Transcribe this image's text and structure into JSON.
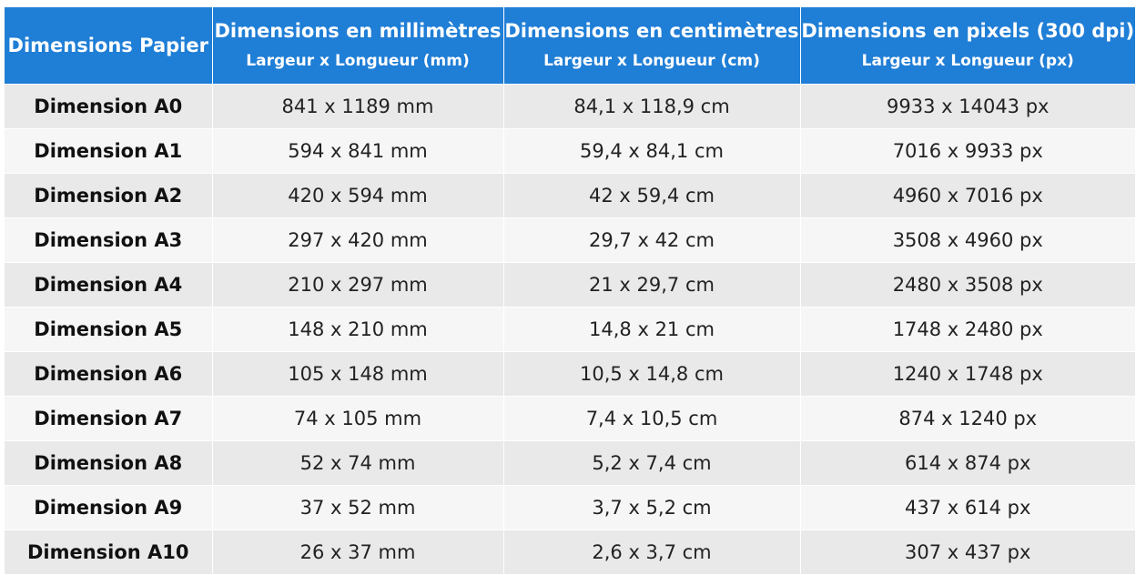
{
  "table": {
    "headers": [
      {
        "main": "Dimensions Papier",
        "sub": ""
      },
      {
        "main": "Dimensions en millimètres",
        "sub": "Largeur x Longueur (mm)"
      },
      {
        "main": "Dimensions en centimètres",
        "sub": "Largeur x Longueur (cm)"
      },
      {
        "main": "Dimensions en pixels (300 dpi)",
        "sub": "Largeur x Longueur (px)"
      }
    ],
    "rows": [
      [
        "Dimension A0",
        "841 x 1189 mm",
        "84,1 x 118,9 cm",
        "9933 x 14043 px"
      ],
      [
        "Dimension A1",
        "594 x 841 mm",
        "59,4 x 84,1 cm",
        "7016 x 9933 px"
      ],
      [
        "Dimension A2",
        "420 x 594 mm",
        "42 x 59,4 cm",
        "4960 x 7016 px"
      ],
      [
        "Dimension A3",
        "297 x 420 mm",
        "29,7 x 42 cm",
        "3508 x 4960 px"
      ],
      [
        "Dimension A4",
        "210 x 297 mm",
        "21 x 29,7 cm",
        "2480 x 3508 px"
      ],
      [
        "Dimension A5",
        "148 x 210 mm",
        "14,8 x 21 cm",
        "1748 x 2480 px"
      ],
      [
        "Dimension A6",
        "105 x 148 mm",
        "10,5 x 14,8 cm",
        "1240 x 1748 px"
      ],
      [
        "Dimension A7",
        "74 x 105 mm",
        "7,4 x 10,5 cm",
        "874 x 1240 px"
      ],
      [
        "Dimension A8",
        "52 x 74 mm",
        "5,2 x 7,4 cm",
        "614 x 874 px"
      ],
      [
        "Dimension A9",
        "37 x 52 mm",
        "3,7 x 5,2 cm",
        "437 x 614 px"
      ],
      [
        "Dimension A10",
        "26 x 37 mm",
        "2,6 x 3,7 cm",
        "307 x 437 px"
      ]
    ]
  },
  "colors": {
    "header_bg": "#1f7ed6",
    "header_text": "#ffffff",
    "row_odd": "#e9e9e9",
    "row_even": "#f6f6f6"
  }
}
